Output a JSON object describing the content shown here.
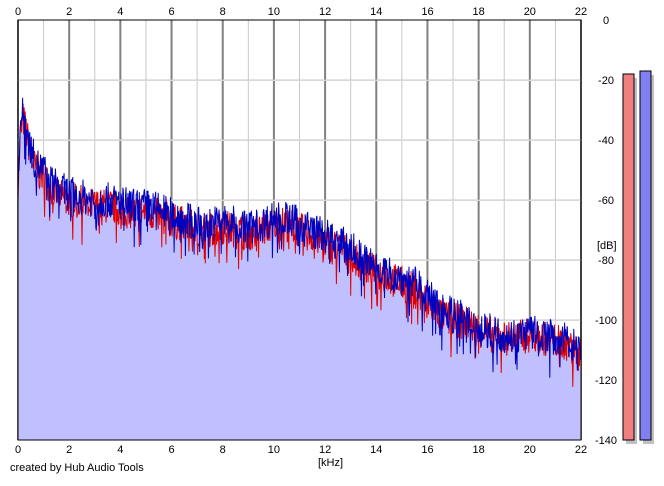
{
  "credit": "created by Hub Audio Tools",
  "colors": {
    "fill": "#c0c0ff",
    "trace_left": "#e00000",
    "trace_right": "#0000c0",
    "grid_major": "#808080",
    "grid_minor": "#c8c8c8",
    "meter_left": "#f08080",
    "meter_right": "#8080f0"
  },
  "chart_data": {
    "type": "area",
    "title": "",
    "xlabel": "[kHz]",
    "ylabel": "[dB]",
    "xlim": [
      0,
      22
    ],
    "ylim": [
      -140,
      0
    ],
    "xticks": [
      0,
      2,
      4,
      6,
      8,
      10,
      12,
      14,
      16,
      18,
      20,
      22
    ],
    "yticks": [
      0,
      -20,
      -40,
      -60,
      -80,
      -100,
      -120,
      -140
    ],
    "grid": true,
    "x_khz": [
      0,
      0.1,
      0.2,
      0.3,
      0.5,
      0.7,
      1.0,
      1.3,
      1.6,
      2.0,
      2.5,
      3.0,
      3.5,
      4.0,
      4.5,
      5.0,
      5.5,
      6.0,
      6.5,
      7.0,
      7.5,
      8.0,
      8.5,
      9.0,
      9.5,
      10.0,
      10.5,
      11.0,
      11.5,
      12.0,
      12.5,
      13.0,
      13.5,
      14.0,
      14.5,
      15.0,
      15.5,
      16.0,
      16.5,
      17.0,
      17.5,
      18.0,
      18.5,
      19.0,
      19.5,
      20.0,
      20.5,
      21.0,
      21.5,
      22.0
    ],
    "series": [
      {
        "channel": "left",
        "values": [
          -55,
          -38,
          -33,
          -36,
          -45,
          -50,
          -52,
          -56,
          -58,
          -60,
          -61,
          -62,
          -62,
          -63,
          -64,
          -64,
          -65,
          -67,
          -68,
          -70,
          -70,
          -69,
          -70,
          -71,
          -70,
          -68,
          -68,
          -70,
          -72,
          -74,
          -76,
          -78,
          -82,
          -84,
          -86,
          -88,
          -90,
          -94,
          -98,
          -100,
          -101,
          -103,
          -105,
          -106,
          -106,
          -105,
          -106,
          -107,
          -108,
          -112
        ]
      },
      {
        "channel": "right",
        "values": [
          -52,
          -34,
          -31,
          -35,
          -43,
          -48,
          -50,
          -54,
          -56,
          -58,
          -59,
          -60,
          -60,
          -61,
          -62,
          -62,
          -63,
          -65,
          -66,
          -68,
          -68,
          -67,
          -68,
          -69,
          -68,
          -66,
          -66,
          -68,
          -70,
          -72,
          -74,
          -76,
          -80,
          -82,
          -84,
          -86,
          -88,
          -92,
          -96,
          -98,
          -100,
          -102,
          -104,
          -105,
          -105,
          -104,
          -105,
          -106,
          -107,
          -110
        ]
      }
    ],
    "meter_axis": [
      0,
      -20,
      -40,
      -60,
      -80,
      -100,
      -120,
      -140
    ],
    "meters": [
      {
        "channel": "left",
        "peak_db": -18
      },
      {
        "channel": "right",
        "peak_db": -17
      }
    ]
  }
}
